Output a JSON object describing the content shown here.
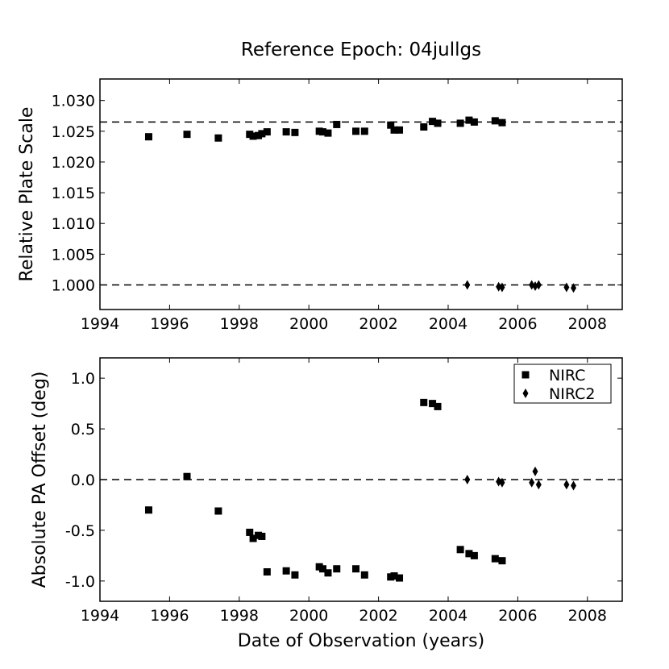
{
  "chart_data": [
    {
      "type": "scatter",
      "title": "Reference Epoch: 04jullgs",
      "xlabel": "",
      "ylabel": "Relative Plate Scale",
      "xlim": [
        1994,
        2009
      ],
      "ylim": [
        0.996,
        1.0335
      ],
      "x_ticks": [
        1994,
        1996,
        1998,
        2000,
        2002,
        2004,
        2006,
        2008
      ],
      "y_ticks": [
        1.0,
        1.005,
        1.01,
        1.015,
        1.02,
        1.025,
        1.03
      ],
      "y_tick_labels": [
        "1.000",
        "1.005",
        "1.010",
        "1.015",
        "1.020",
        "1.025",
        "1.030"
      ],
      "reference_lines": [
        1.0265,
        1.0
      ],
      "series": [
        {
          "name": "NIRC",
          "marker": "square",
          "x": [
            1995.4,
            1996.5,
            1997.4,
            1998.3,
            1998.4,
            1998.55,
            1998.65,
            1998.8,
            1999.35,
            1999.6,
            2000.3,
            2000.4,
            2000.55,
            2000.8,
            2001.35,
            2001.6,
            2002.35,
            2002.45,
            2002.6,
            2003.3,
            2003.55,
            2003.7,
            2004.35,
            2004.6,
            2004.75,
            2005.35,
            2005.55
          ],
          "y": [
            1.0241,
            1.0245,
            1.0239,
            1.0245,
            1.0242,
            1.0243,
            1.0246,
            1.0249,
            1.0249,
            1.0248,
            1.025,
            1.0249,
            1.0247,
            1.0261,
            1.025,
            1.025,
            1.026,
            1.0252,
            1.0252,
            1.0257,
            1.0266,
            1.0263,
            1.0263,
            1.0268,
            1.0265,
            1.0267,
            1.0264
          ]
        },
        {
          "name": "NIRC2",
          "marker": "diamond",
          "x": [
            2004.55,
            2005.45,
            2005.55,
            2006.4,
            2006.5,
            2006.6,
            2007.4,
            2007.6
          ],
          "y": [
            1.0,
            0.9997,
            0.9996,
            1.0,
            0.9998,
            1.0,
            0.9996,
            0.9995
          ]
        }
      ]
    },
    {
      "type": "scatter",
      "title": "",
      "xlabel": "Date of Observation (years)",
      "ylabel": "Absolute PA Offset (deg)",
      "xlim": [
        1994,
        2009
      ],
      "ylim": [
        -1.2,
        1.2
      ],
      "x_ticks": [
        1994,
        1996,
        1998,
        2000,
        2002,
        2004,
        2006,
        2008
      ],
      "y_ticks": [
        -1.0,
        -0.5,
        0.0,
        0.5,
        1.0
      ],
      "y_tick_labels": [
        "-1.0",
        "-0.5",
        "0.0",
        "0.5",
        "1.0"
      ],
      "reference_lines": [
        0.0
      ],
      "legend": {
        "position": "top-right"
      },
      "series": [
        {
          "name": "NIRC",
          "marker": "square",
          "x": [
            1995.4,
            1996.5,
            1997.4,
            1998.3,
            1998.4,
            1998.55,
            1998.65,
            1998.8,
            1999.35,
            1999.6,
            2000.3,
            2000.4,
            2000.55,
            2000.8,
            2001.35,
            2001.6,
            2002.35,
            2002.45,
            2002.6,
            2003.3,
            2003.55,
            2003.7,
            2004.35,
            2004.6,
            2004.75,
            2005.35,
            2005.55
          ],
          "y": [
            -0.3,
            0.03,
            -0.31,
            -0.52,
            -0.58,
            -0.55,
            -0.56,
            -0.91,
            -0.9,
            -0.94,
            -0.86,
            -0.88,
            -0.92,
            -0.88,
            -0.88,
            -0.94,
            -0.96,
            -0.95,
            -0.97,
            0.76,
            0.75,
            0.72,
            -0.69,
            -0.73,
            -0.75,
            -0.78,
            -0.8
          ]
        },
        {
          "name": "NIRC2",
          "marker": "diamond",
          "x": [
            2004.55,
            2005.45,
            2005.55,
            2006.4,
            2006.5,
            2006.6,
            2007.4,
            2007.6
          ],
          "y": [
            0.0,
            -0.02,
            -0.03,
            -0.03,
            0.08,
            -0.05,
            -0.05,
            -0.06
          ]
        }
      ]
    }
  ]
}
